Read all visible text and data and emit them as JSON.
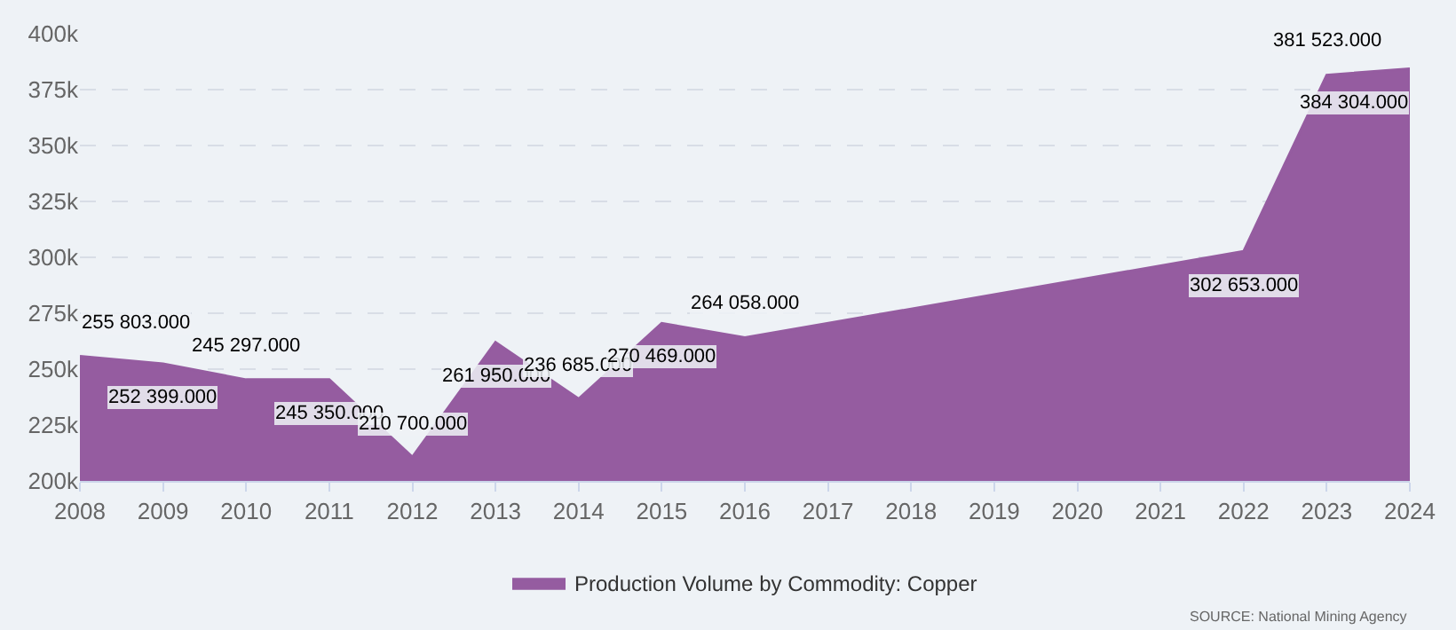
{
  "chart_data": {
    "type": "area",
    "x": [
      2008,
      2009,
      2010,
      2011,
      2012,
      2013,
      2014,
      2015,
      2016,
      2022,
      2023,
      2024
    ],
    "series": [
      {
        "name": "Production Volume by Commodity: Copper",
        "color": "#955ca0",
        "values": [
          255803,
          252399,
          245297,
          245350,
          210700,
          261950,
          236685,
          270469,
          264058,
          302653,
          381523,
          384304
        ],
        "value_labels": [
          "255 803.000",
          "252 399.000",
          "245 297.000",
          "245 350.000",
          "210 700.000",
          "261 950.000",
          "236 685.000",
          "270 469.000",
          "264 058.000",
          "302 653.000",
          "381 523.000",
          "384 304.000"
        ]
      }
    ],
    "xlim": [
      2008,
      2024
    ],
    "xticks": [
      2008,
      2009,
      2010,
      2011,
      2012,
      2013,
      2014,
      2015,
      2016,
      2017,
      2018,
      2019,
      2020,
      2021,
      2022,
      2023,
      2024
    ],
    "ylim": [
      200000,
      400000
    ],
    "yticks": [
      {
        "value": 200000,
        "label": "200k"
      },
      {
        "value": 225000,
        "label": "225k"
      },
      {
        "value": 250000,
        "label": "250k"
      },
      {
        "value": 275000,
        "label": "275k"
      },
      {
        "value": 300000,
        "label": "300k"
      },
      {
        "value": 325000,
        "label": "325k"
      },
      {
        "value": 350000,
        "label": "350k"
      },
      {
        "value": 375000,
        "label": "375k"
      },
      {
        "value": 400000,
        "label": "400k"
      }
    ],
    "grid": "y",
    "legend": "bottom",
    "marker": "none",
    "annotations": [
      "SOURCE: National Mining Agency"
    ]
  }
}
